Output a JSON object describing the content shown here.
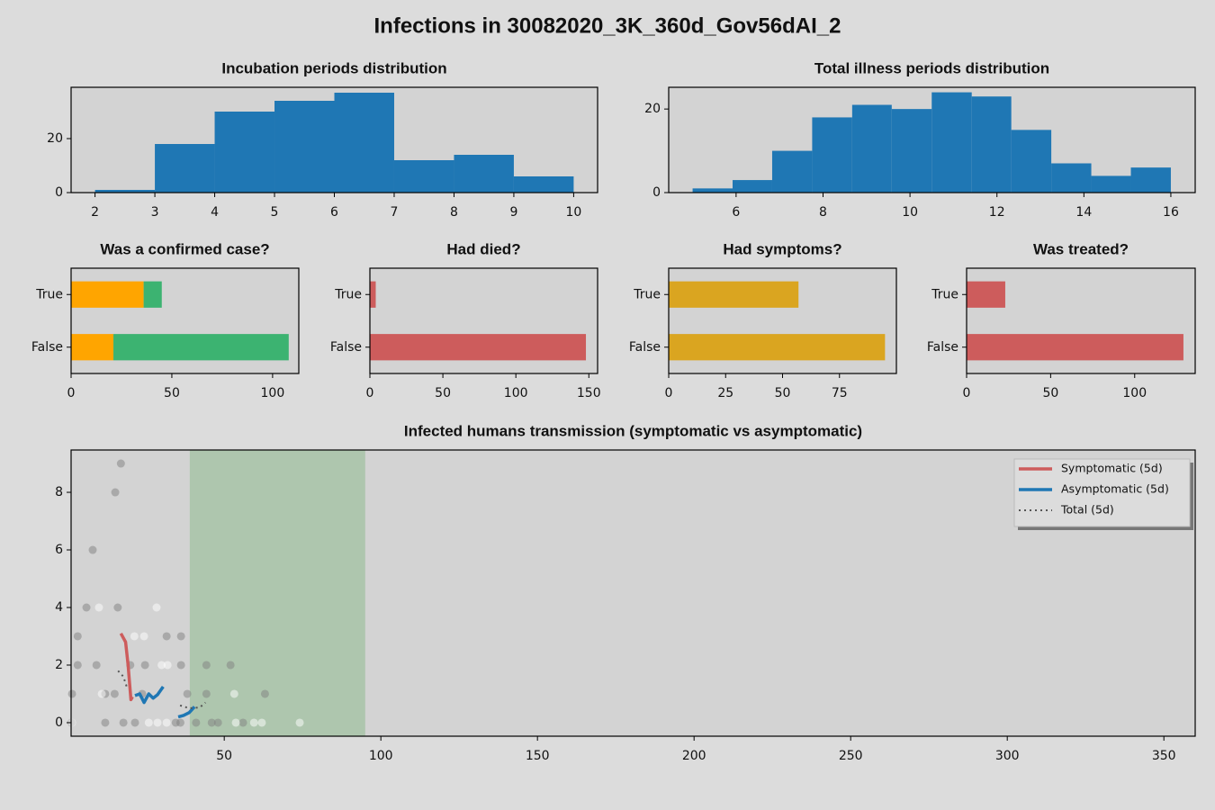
{
  "title": "Infections in 30082020_3K_360d_Gov56dAI_2",
  "chart_data": [
    {
      "type": "histogram",
      "title": "Incubation periods distribution",
      "color": "#1f77b4",
      "bins": [
        2,
        3,
        4,
        5,
        6,
        7,
        8,
        9,
        10
      ],
      "values": [
        1,
        18,
        30,
        34,
        37,
        12,
        14,
        6
      ],
      "xlim": [
        1.6,
        10.4
      ],
      "xticks": [
        2,
        3,
        4,
        5,
        6,
        7,
        8,
        9,
        10
      ],
      "ylim": [
        0,
        39
      ],
      "yticks": [
        0,
        20
      ]
    },
    {
      "type": "histogram",
      "title": "Total illness periods distribution",
      "color": "#1f77b4",
      "bins": [
        5,
        5.92,
        6.83,
        7.75,
        8.67,
        9.58,
        10.5,
        11.42,
        12.33,
        13.25,
        14.17,
        15.08,
        16
      ],
      "values": [
        1,
        3,
        10,
        18,
        21,
        20,
        24,
        23,
        15,
        7,
        4,
        6
      ],
      "xlim": [
        4.45,
        16.56
      ],
      "xticks": [
        6,
        8,
        10,
        12,
        14,
        16
      ],
      "ylim": [
        0,
        25.2
      ],
      "yticks": [
        0,
        20
      ]
    },
    {
      "type": "hbar",
      "title": "Was a confirmed case?",
      "categories": [
        "True",
        "False"
      ],
      "series": [
        {
          "color": "#ffa500",
          "values": [
            36,
            21
          ]
        },
        {
          "color": "#3cb371",
          "values": [
            9,
            87
          ]
        }
      ],
      "xlim": [
        0,
        113
      ],
      "xticks": [
        0,
        50,
        100
      ]
    },
    {
      "type": "hbar",
      "title": "Had died?",
      "categories": [
        "True",
        "False"
      ],
      "series": [
        {
          "color": "#cd5c5c",
          "values": [
            4,
            148
          ]
        }
      ],
      "xlim": [
        0,
        156
      ],
      "xticks": [
        0,
        50,
        100,
        150
      ]
    },
    {
      "type": "hbar",
      "title": "Had symptoms?",
      "categories": [
        "True",
        "False"
      ],
      "series": [
        {
          "color": "#daa520",
          "values": [
            57,
            95
          ]
        }
      ],
      "xlim": [
        0,
        100
      ],
      "xticks": [
        0,
        25,
        50,
        75
      ]
    },
    {
      "type": "hbar",
      "title": "Was treated?",
      "categories": [
        "True",
        "False"
      ],
      "series": [
        {
          "color": "#cd5c5c",
          "values": [
            23,
            129
          ]
        }
      ],
      "xlim": [
        0,
        136
      ],
      "xticks": [
        0,
        50,
        100
      ]
    },
    {
      "type": "scatter",
      "title": "Infected humans transmission (symptomatic vs asymptomatic)",
      "xlim": [
        1.1,
        360
      ],
      "xticks": [
        50,
        100,
        150,
        200,
        250,
        300,
        350
      ],
      "ylim": [
        -0.47,
        9.47
      ],
      "yticks": [
        0,
        2,
        4,
        6,
        8
      ],
      "span": {
        "x": [
          39,
          95
        ],
        "color": "#8fbc8f"
      },
      "points": [
        {
          "color": "#808080",
          "x": [
            1.2,
            1.4,
            3.2,
            3.2,
            6,
            8,
            9.2,
            12,
            12,
            15,
            15.2,
            17,
            16,
            17.8,
            21.5,
            20,
            23.8,
            24.7,
            31.6,
            36.2,
            34.5,
            36.2,
            38.2,
            44.3,
            52,
            44.3,
            63,
            46,
            56,
            36,
            41,
            48
          ],
          "values": [
            0,
            1,
            3,
            2,
            4,
            6,
            2,
            1,
            0,
            1,
            8,
            9,
            4,
            0,
            0,
            2,
            1,
            2,
            3,
            3,
            0,
            2,
            1,
            2,
            2,
            1,
            1,
            0,
            0,
            0,
            0,
            0
          ]
        },
        {
          "color": "#ffffff",
          "x": [
            1.4,
            10,
            28.4,
            21.3,
            24.4,
            30,
            10.9,
            25.9,
            28.7,
            31.6,
            53.2,
            59.5,
            74.1,
            53.7,
            62,
            31.9
          ],
          "values": [
            0,
            4,
            4,
            3,
            3,
            2,
            1,
            0,
            0,
            0,
            1,
            0,
            0,
            0,
            0,
            2
          ]
        }
      ],
      "series": [
        {
          "name": "Symptomatic (5d)",
          "color": "#cd5c5c",
          "style": "solid",
          "x": [
            17,
            18.5,
            19.3,
            20.2,
            20.7
          ],
          "values": [
            3.1,
            2.8,
            2.0,
            0.8,
            0.9
          ]
        },
        {
          "name": "Asymptomatic (5d)",
          "color": "#1f77b4",
          "style": "solid",
          "x": [
            21.5,
            23,
            24.4,
            25.9,
            27.3,
            28.7,
            30.5,
            null,
            35.3,
            37,
            38.8,
            40.5
          ],
          "values": [
            0.94,
            1.0,
            0.7,
            1.0,
            0.85,
            0.97,
            1.25,
            null,
            0.2,
            0.25,
            0.35,
            0.55
          ]
        },
        {
          "name": "Total (5d)",
          "color": "#555555",
          "style": "dotted",
          "x": [
            16.1,
            17.8,
            19,
            null,
            35.9,
            38.8,
            42.2,
            44
          ],
          "values": [
            1.8,
            1.6,
            1.2,
            null,
            0.6,
            0.5,
            0.53,
            0.7
          ]
        }
      ],
      "legend": "upper right"
    }
  ]
}
